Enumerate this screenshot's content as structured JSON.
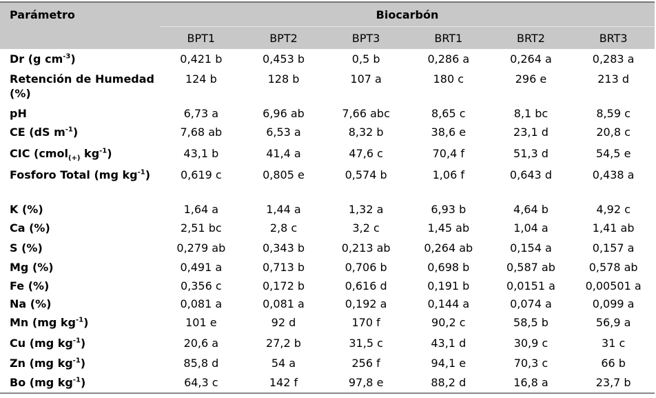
{
  "header": {
    "param_label": "Parámetro",
    "group_label": "Biocarbón",
    "columns": [
      "BPT1",
      "BPT2",
      "BPT3",
      "BRT1",
      "BRT2",
      "BRT3"
    ]
  },
  "rows": [
    {
      "label": [
        {
          "t": "Dr (g cm"
        },
        {
          "sup": "-3"
        },
        {
          "t": ")"
        }
      ],
      "values": [
        "0,421 b",
        "0,453 b",
        "0,5 b",
        "0,286 a",
        "0,264 a",
        "0,283 a"
      ]
    },
    {
      "label": [
        {
          "t": "Retención de Humedad (%)"
        }
      ],
      "values": [
        "124 b",
        "128 b",
        "107 a",
        "180 c",
        "296 e",
        "213 d"
      ]
    },
    {
      "label": [
        {
          "t": "pH"
        }
      ],
      "values": [
        "6,73 a",
        "6,96 ab",
        "7,66 abc",
        "8,65 c",
        "8,1 bc",
        "8,59 c"
      ]
    },
    {
      "label": [
        {
          "t": "CE (dS m"
        },
        {
          "sup": "-1"
        },
        {
          "t": ")"
        }
      ],
      "values": [
        "7,68 ab",
        "6,53 a",
        "8,32 b",
        "38,6 e",
        "23,1 d",
        "20,8 c"
      ]
    },
    {
      "label": [
        {
          "t": "CIC (cmol"
        },
        {
          "sub": "(+)"
        },
        {
          "t": " kg"
        },
        {
          "sup": "-1"
        },
        {
          "t": ")"
        }
      ],
      "values": [
        "43,1 b",
        "41,4 a",
        "47,6 c",
        "70,4 f",
        "51,3 d",
        "54,5 e"
      ]
    },
    {
      "label": [
        {
          "t": "Fosforo Total (mg kg"
        },
        {
          "sup": "-1"
        },
        {
          "t": ")"
        }
      ],
      "values": [
        "0,619 c",
        "0,805 e",
        "0,574 b",
        "1,06 f",
        "0,643 d",
        "0,438 a"
      ]
    },
    {
      "label": [
        {
          "t": "K (%)"
        }
      ],
      "values": [
        "1,64 a",
        "1,44 a",
        "1,32 a",
        "6,93 b",
        "4,64 b",
        "4,92 c"
      ]
    },
    {
      "label": [
        {
          "t": "Ca (%)"
        }
      ],
      "values": [
        "2,51 bc",
        "2,8 c",
        "3,2 c",
        "1,45 ab",
        "1,04 a",
        "1,41 ab"
      ]
    },
    {
      "label": [
        {
          "t": "S (%)"
        }
      ],
      "values": [
        "0,279 ab",
        "0,343 b",
        "0,213 ab",
        "0,264 ab",
        "0,154 a",
        "0,157 a"
      ]
    },
    {
      "label": [
        {
          "t": "Mg (%)"
        }
      ],
      "values": [
        "0,491 a",
        "0,713 b",
        "0,706 b",
        "0,698 b",
        "0,587 ab",
        "0,578 ab"
      ]
    },
    {
      "label": [
        {
          "t": "Fe (%)"
        }
      ],
      "values": [
        "0,356 c",
        "0,172 b",
        "0,616 d",
        "0,191 b",
        "0,0151 a",
        "0,00501 a"
      ]
    },
    {
      "label": [
        {
          "t": "Na (%)"
        }
      ],
      "values": [
        "0,081 a",
        "0,081 a",
        "0,192 a",
        "0,144 a",
        "0,074 a",
        "0,099 a"
      ]
    },
    {
      "label": [
        {
          "t": "Mn (mg kg"
        },
        {
          "sup": "-1"
        },
        {
          "t": ")"
        }
      ],
      "values": [
        "101 e",
        "92 d",
        "170 f",
        "90,2 c",
        "58,5 b",
        "56,9 a"
      ]
    },
    {
      "label": [
        {
          "t": "Cu (mg kg"
        },
        {
          "sup": "-1"
        },
        {
          "t": ")"
        }
      ],
      "values": [
        "20,6 a",
        "27,2 b",
        "31,5 c",
        "43,1 d",
        "30,9 c",
        "31 c"
      ]
    },
    {
      "label": [
        {
          "t": "Zn (mg kg"
        },
        {
          "sup": "-1"
        },
        {
          "t": ")"
        }
      ],
      "values": [
        "85,8 d",
        "54 a",
        "256 f",
        "94,1 e",
        "70,3 c",
        "66 b"
      ]
    },
    {
      "label": [
        {
          "t": "Bo (mg kg"
        },
        {
          "sup": "-1"
        },
        {
          "t": ")"
        }
      ],
      "values": [
        "64,3 c",
        "142 f",
        "97,8 e",
        "88,2 d",
        "16,8 a",
        "23,7 b"
      ]
    }
  ]
}
